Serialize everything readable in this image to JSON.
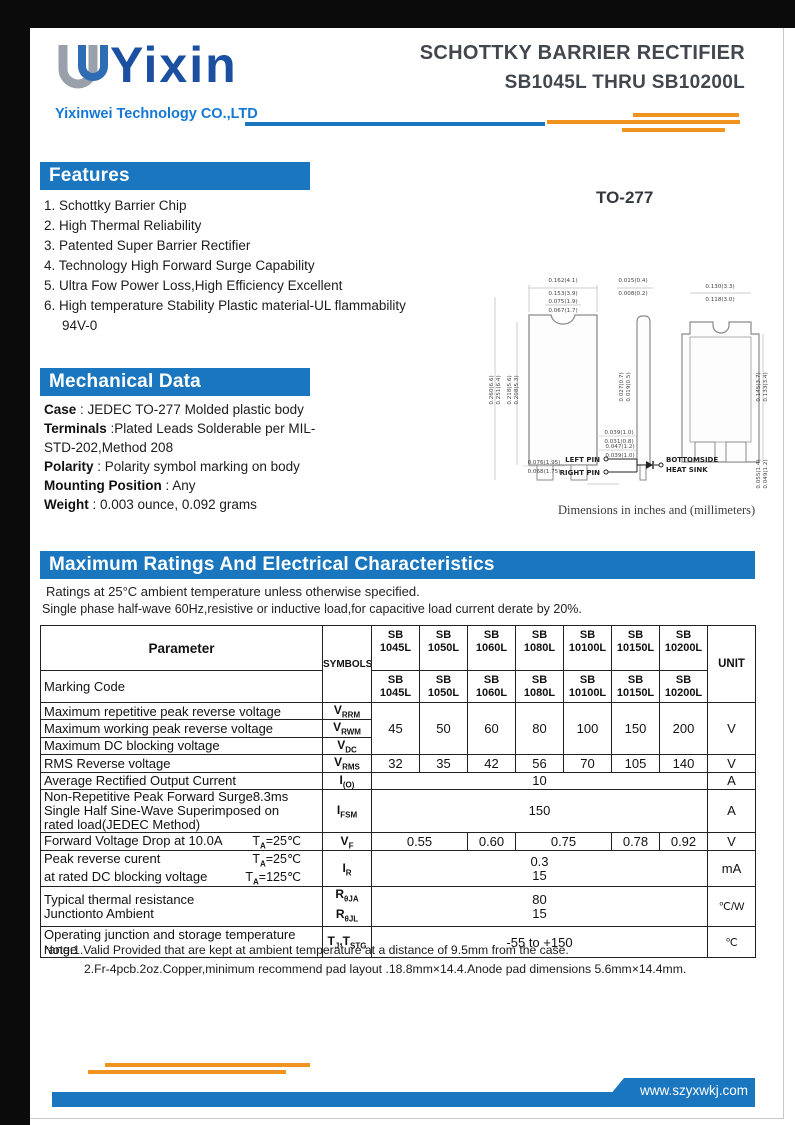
{
  "colors": {
    "accent_blue": "#1a77bf",
    "accent_orange": "#f0941f",
    "logo_navy": "#1b4fa0",
    "company_blue": "#1577d4",
    "title_gray": "#42474e"
  },
  "header": {
    "logo_text": "Yixin",
    "company": "Yixinwei Technology CO.,LTD",
    "title_line1": "SCHOTTKY BARRIER RECTIFIER",
    "title_line2": "SB1045L THRU SB10200L"
  },
  "features": {
    "heading": "Features",
    "items": [
      "1. Schottky Barrier Chip",
      "2. High Thermal Reliability",
      "3. Patented Super Barrier Rectifier",
      "4. Technology High Forward Surge Capability",
      "5. Ultra Fow Power Loss,High Efficiency Excellent",
      "6. High temperature Stability Plastic material-UL flammability 94V-0"
    ]
  },
  "mechanical": {
    "heading": "Mechanical Data",
    "rows": [
      {
        "label": "Case",
        "text": " : JEDEC TO-277 Molded plastic body"
      },
      {
        "label": "Terminals",
        "text": " :Plated Leads Solderable per MIL-STD-202,Method 208"
      },
      {
        "label": "Polarity",
        "text": " : Polarity symbol  marking on body"
      },
      {
        "label": "Mounting Position",
        "text": " : Any"
      },
      {
        "label": "Weight",
        "text": " : 0.003 ounce, 0.092 grams"
      }
    ]
  },
  "package": {
    "name": "TO-277",
    "dimensions_note": "Dimensions in inches and (millimeters)",
    "pins": {
      "left": "LEFT PIN",
      "right": "RIGHT PIN",
      "bottom1": "BOTTOMSIDE",
      "bottom2": "HEAT SINK"
    },
    "dim_labels": {
      "front_width": [
        "0.162(4.1)",
        "0.153(3.9)"
      ],
      "front_notch": [
        "0.075(1.9)",
        "0.067(1.7)"
      ],
      "front_height_outer": [
        "0.260(6.6)",
        "0.251(6.4)"
      ],
      "front_height_body": [
        "0.218(5.6)",
        "0.208(5.3)"
      ],
      "front_lead_width": [
        "0.039(1.0)",
        "0.031(0.8)"
      ],
      "front_lead_pitch": [
        "0.076(1.95)",
        "0.068(1.75)"
      ],
      "side_thickness": [
        "0.015(0.4)",
        "0.008(0.2)"
      ],
      "side_standoff": [
        "0.027(0.7)",
        "0.019(0.5)"
      ],
      "side_lead": [
        "0.047(1.2)",
        "0.039(1.0)"
      ],
      "back_width": [
        "0.130(3.3)",
        "0.118(3.0)"
      ],
      "back_height": [
        "0.145(3.7)",
        "0.133(3.4)"
      ],
      "back_lead": [
        "0.055(1.4)",
        "0.049(1.2)"
      ]
    }
  },
  "ratings": {
    "heading": "Maximum Ratings And Electrical Characteristics",
    "note1": "Ratings at 25°C ambient temperature unless otherwise specified.",
    "note2": "Single phase half-wave 60Hz,resistive or inductive load,for capacitive load current derate by 20%.",
    "table": {
      "param_header": "Parameter",
      "symbols_header": "SYMBOLS",
      "unit_header": "UNIT",
      "marking_code_label": "Marking Code",
      "devices": [
        [
          "SB",
          "1045L"
        ],
        [
          "SB",
          "1050L"
        ],
        [
          "SB",
          "1060L"
        ],
        [
          "SB",
          "1080L"
        ],
        [
          "SB",
          "10100L"
        ],
        [
          "SB",
          "10150L"
        ],
        [
          "SB",
          "10200L"
        ]
      ],
      "voltage_rows": {
        "labels": [
          "Maximum repetitive peak reverse voltage",
          "Maximum working peak reverse voltage",
          "Maximum DC blocking voltage"
        ],
        "symbols": [
          [
            {
              "t": "V"
            },
            {
              "s": "RRM"
            }
          ],
          [
            {
              "t": "V"
            },
            {
              "s": "RWM"
            }
          ],
          [
            {
              "t": "V"
            },
            {
              "s": "DC"
            }
          ]
        ],
        "values": [
          "45",
          "50",
          "60",
          "80",
          "100",
          "150",
          "200"
        ],
        "unit": "V"
      },
      "rms_row": {
        "label": "RMS Reverse voltage",
        "symbol": [
          {
            "t": "V"
          },
          {
            "s": "RMS"
          }
        ],
        "values": [
          "32",
          "35",
          "42",
          "56",
          "70",
          "105",
          "140"
        ],
        "unit": "V"
      },
      "io_row": {
        "label": "Average Rectified Output Current",
        "symbol": [
          {
            "t": "I"
          },
          {
            "s": "(O)"
          }
        ],
        "value": "10",
        "unit": "A"
      },
      "ifsm_row": {
        "label_lines": [
          "Non-Repetitive Peak Forward Surge8.3ms",
          "Single Half Sine-Wave Superimposed on",
          "rated load(JEDEC Method)"
        ],
        "symbol": [
          {
            "t": "I"
          },
          {
            "s": "FSM"
          }
        ],
        "value": "150",
        "unit": "A"
      },
      "vf_row": {
        "label": "Forward Voltage Drop at 10.0A",
        "condition": [
          {
            "t": "T"
          },
          {
            "s": "A"
          },
          {
            "t": "=25℃"
          }
        ],
        "symbol": [
          {
            "t": "V"
          },
          {
            "s": "F"
          }
        ],
        "values": [
          "0.55",
          "0.60",
          "0.75",
          "0.78",
          "0.92"
        ],
        "unit": "V"
      },
      "ir_row": {
        "label_lines": [
          "Peak reverse curent",
          "at rated DC blocking voltage"
        ],
        "conditions": [
          [
            {
              "t": "T"
            },
            {
              "s": "A"
            },
            {
              "t": "=25℃"
            }
          ],
          [
            {
              "t": "T"
            },
            {
              "s": "A"
            },
            {
              "t": "=125℃"
            }
          ]
        ],
        "symbol": [
          {
            "t": "I"
          },
          {
            "s": "R"
          }
        ],
        "values": [
          "0.3",
          "15"
        ],
        "unit": "mA"
      },
      "rth_row": {
        "label_lines": [
          "Typical thermal resistance",
          "Junctionto Ambient"
        ],
        "symbols": [
          [
            {
              "t": "R"
            },
            {
              "s": "θJA"
            }
          ],
          [
            {
              "t": "R"
            },
            {
              "s": "θJL"
            }
          ]
        ],
        "values": [
          "80",
          "15"
        ],
        "unit": "℃/W"
      },
      "tj_row": {
        "label": "Operating junction and storage temperature range",
        "symbol": [
          {
            "t": "T"
          },
          {
            "s": "J"
          },
          {
            "t": ",T"
          },
          {
            "s": "STG"
          }
        ],
        "value": "-55 to +150",
        "unit": "℃"
      }
    }
  },
  "notes": [
    "Note:1.Valid Provided that are kept at ambient temperature at a distance of 9.5mm from the case.",
    "2.Fr-4pcb.2oz.Copper,minimum recommend pad layout .18.8mm×14.4.Anode pad dimensions 5.6mm×14.4mm."
  ],
  "footer": {
    "url": "www.szyxwkj.com"
  }
}
